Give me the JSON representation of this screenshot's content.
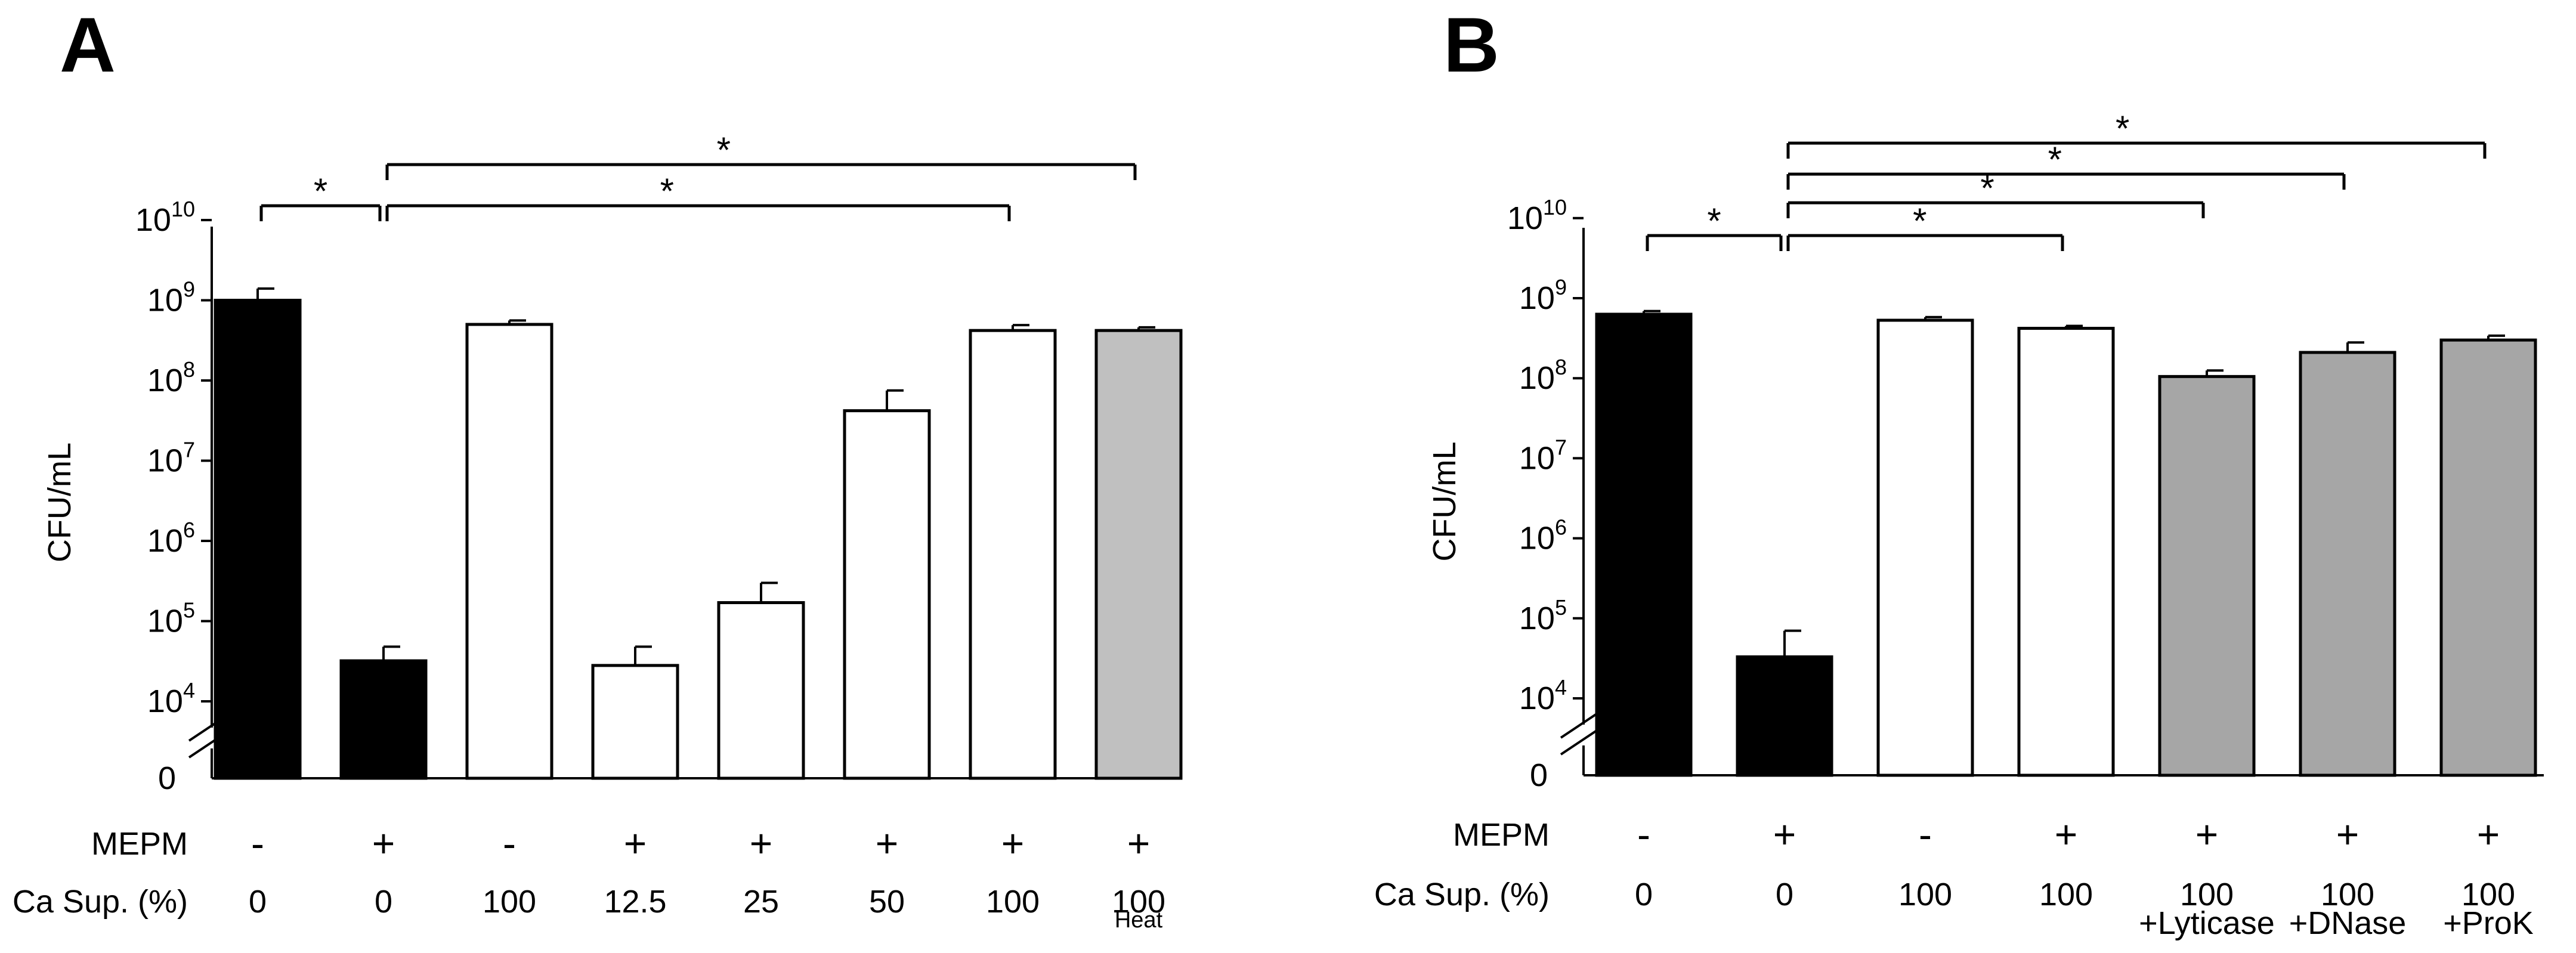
{
  "chart_data": [
    {
      "type": "bar",
      "panel": "A",
      "ylabel": "CFU/mL",
      "yscale": "log",
      "ylim": [
        1000,
        10000000000
      ],
      "y_ticks": [
        {
          "base": "10",
          "exp": "10"
        },
        {
          "base": "10",
          "exp": "9"
        },
        {
          "base": "10",
          "exp": "8"
        },
        {
          "base": "10",
          "exp": "7"
        },
        {
          "base": "10",
          "exp": "6"
        },
        {
          "base": "10",
          "exp": "5"
        },
        {
          "base": "10",
          "exp": "4"
        },
        {
          "base": "0",
          "exp": ""
        }
      ],
      "row_labels": {
        "mepm": "MEPM",
        "ca": "Ca Sup. (%)"
      },
      "categories": [
        {
          "mepm": "-",
          "ca": "0",
          "sub": "",
          "value": 1000000000,
          "err": 400000000,
          "color": "#000000"
        },
        {
          "mepm": "+",
          "ca": "0",
          "sub": "",
          "value": 32000,
          "err": 16000,
          "color": "#000000"
        },
        {
          "mepm": "-",
          "ca": "100",
          "sub": "",
          "value": 500000000,
          "err": 60000000,
          "color": "#ffffff"
        },
        {
          "mepm": "+",
          "ca": "12.5",
          "sub": "",
          "value": 28000,
          "err": 20000,
          "color": "#ffffff"
        },
        {
          "mepm": "+",
          "ca": "25",
          "sub": "",
          "value": 170000,
          "err": 130000,
          "color": "#ffffff"
        },
        {
          "mepm": "+",
          "ca": "50",
          "sub": "",
          "value": 42000000,
          "err": 33000000,
          "color": "#ffffff"
        },
        {
          "mepm": "+",
          "ca": "100",
          "sub": "",
          "value": 420000000,
          "err": 70000000,
          "color": "#ffffff"
        },
        {
          "mepm": "+",
          "ca": "100",
          "sub": "Heat",
          "value": 420000000,
          "err": 40000000,
          "color": "#c0c0c0"
        }
      ],
      "annotations": [
        {
          "from": 0,
          "to": 1,
          "level": 1,
          "label": "*"
        },
        {
          "from": 1,
          "to": 6,
          "level": 1,
          "label": "*"
        },
        {
          "from": 1,
          "to": 7,
          "level": 2,
          "label": "*"
        }
      ]
    },
    {
      "type": "bar",
      "panel": "B",
      "ylabel": "CFU/mL",
      "yscale": "log",
      "ylim": [
        1000,
        10000000000
      ],
      "y_ticks": [
        {
          "base": "10",
          "exp": "10"
        },
        {
          "base": "10",
          "exp": "9"
        },
        {
          "base": "10",
          "exp": "8"
        },
        {
          "base": "10",
          "exp": "7"
        },
        {
          "base": "10",
          "exp": "6"
        },
        {
          "base": "10",
          "exp": "5"
        },
        {
          "base": "10",
          "exp": "4"
        },
        {
          "base": "0",
          "exp": ""
        }
      ],
      "row_labels": {
        "mepm": "MEPM",
        "ca": "Ca Sup. (%)"
      },
      "categories": [
        {
          "mepm": "-",
          "ca": "0",
          "sub": "",
          "value": 630000000,
          "err": 60000000,
          "color": "#000000"
        },
        {
          "mepm": "+",
          "ca": "0",
          "sub": "",
          "value": 33000,
          "err": 37000,
          "color": "#000000"
        },
        {
          "mepm": "-",
          "ca": "100",
          "sub": "",
          "value": 530000000,
          "err": 50000000,
          "color": "#ffffff"
        },
        {
          "mepm": "+",
          "ca": "100",
          "sub": "",
          "value": 420000000,
          "err": 30000000,
          "color": "#ffffff"
        },
        {
          "mepm": "+",
          "ca": "100",
          "sub": "+Lyticase",
          "value": 105000000,
          "err": 20000000,
          "color": "#a6a6a6"
        },
        {
          "mepm": "+",
          "ca": "100",
          "sub": "+DNase",
          "value": 210000000,
          "err": 70000000,
          "color": "#a6a6a6"
        },
        {
          "mepm": "+",
          "ca": "100",
          "sub": "+ProK",
          "value": 300000000,
          "err": 40000000,
          "color": "#a6a6a6"
        }
      ],
      "annotations": [
        {
          "from": 0,
          "to": 1,
          "level": 0,
          "label": "*"
        },
        {
          "from": 1,
          "to": 3,
          "level": 0,
          "label": "*"
        },
        {
          "from": 1,
          "to": 4,
          "level": 1,
          "label": "*"
        },
        {
          "from": 1,
          "to": 5,
          "level": 2,
          "label": "*"
        },
        {
          "from": 1,
          "to": 6,
          "level": 3,
          "label": "*"
        }
      ]
    }
  ]
}
